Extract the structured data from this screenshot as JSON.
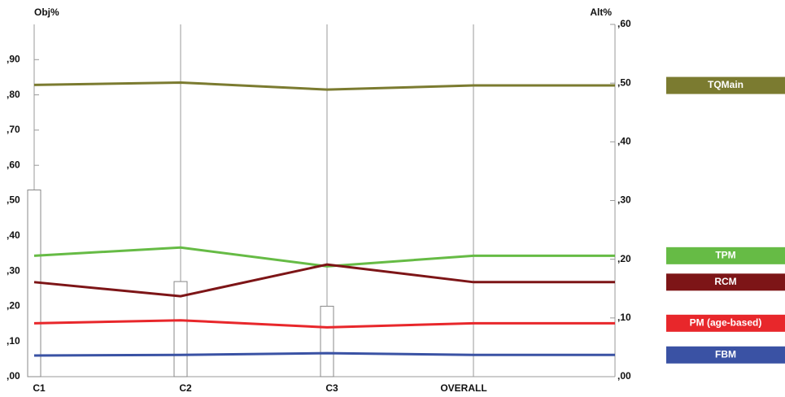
{
  "chart_data": {
    "type": "performance-sensitivity",
    "y_label": "Obj%",
    "y2_label": "Alt%",
    "categories": [
      "C1",
      "C2",
      "C3",
      "OVERALL"
    ],
    "ylim": [
      0,
      1.0
    ],
    "yticks": [
      {
        "value": 0,
        "label": ",00"
      },
      {
        "value": 0.1,
        "label": ",10"
      },
      {
        "value": 0.2,
        "label": ",20"
      },
      {
        "value": 0.3,
        "label": ",30"
      },
      {
        "value": 0.4,
        "label": ",40"
      },
      {
        "value": 0.5,
        "label": ",50"
      },
      {
        "value": 0.6,
        "label": ",60"
      },
      {
        "value": 0.7,
        "label": ",70"
      },
      {
        "value": 0.8,
        "label": ",80"
      },
      {
        "value": 0.9,
        "label": ",90"
      }
    ],
    "y2lim": [
      0,
      0.6
    ],
    "y2ticks": [
      {
        "value": 0,
        "label": ",00"
      },
      {
        "value": 0.1,
        "label": ",10"
      },
      {
        "value": 0.2,
        "label": ",20"
      },
      {
        "value": 0.3,
        "label": ",30"
      },
      {
        "value": 0.4,
        "label": ",40"
      },
      {
        "value": 0.5,
        "label": ",50"
      },
      {
        "value": 0.6,
        "label": ",60"
      }
    ],
    "objective_values": [
      0.53,
      0.27,
      0.2
    ],
    "series": [
      {
        "name": "TQMain",
        "color": "#7b7b30",
        "axis": "y2",
        "values": [
          0.497,
          0.501,
          0.489,
          0.496
        ]
      },
      {
        "name": "TPM",
        "color": "#66bb45",
        "axis": "y2",
        "values": [
          0.206,
          0.22,
          0.188,
          0.206
        ]
      },
      {
        "name": "RCM",
        "color": "#7d1517",
        "axis": "y2",
        "values": [
          0.161,
          0.137,
          0.191,
          0.161
        ]
      },
      {
        "name": "PM (age-based)",
        "color": "#e8272b",
        "axis": "y2",
        "values": [
          0.091,
          0.096,
          0.084,
          0.091
        ]
      },
      {
        "name": "FBM",
        "color": "#3a52a4",
        "axis": "y2",
        "values": [
          0.036,
          0.037,
          0.04,
          0.037
        ]
      }
    ]
  }
}
